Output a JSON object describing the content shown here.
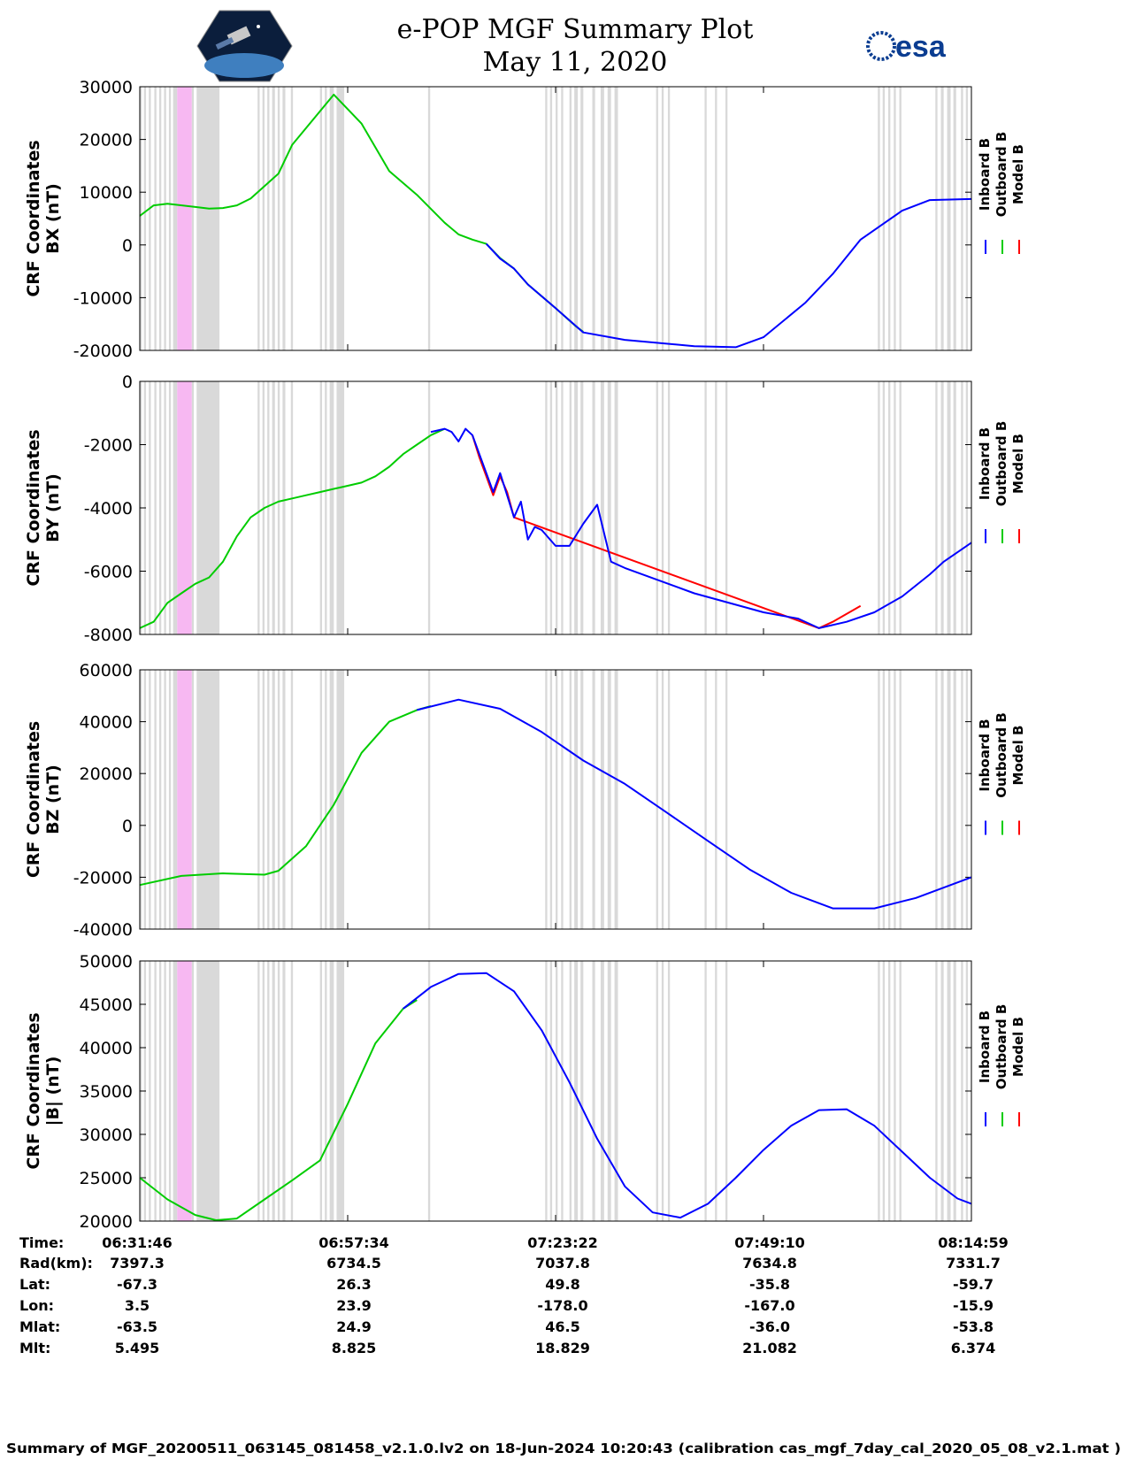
{
  "header": {
    "title_line1": "e-POP MGF Summary Plot",
    "title_line2": "May 11, 2020",
    "left_logo": "cassiope-satellite-logo",
    "right_logo_text": "esa"
  },
  "colors": {
    "inboard": "#0000ff",
    "outboard": "#00cc00",
    "model": "#ff0000",
    "gap_gray": "#d9d9d9",
    "gap_pink": "#f7b8f2"
  },
  "chart_data": [
    {
      "type": "line",
      "ylabel_line1": "CRF Coordinates",
      "ylabel_line2": "BX (nT)",
      "ylim": [
        -20000,
        30000
      ],
      "yticks": [
        -20000,
        -10000,
        0,
        10000,
        20000,
        30000
      ],
      "ytick_labels": [
        "-20000",
        "-10000",
        "0",
        "10000",
        "20000",
        "30000"
      ],
      "legend": [
        "Inboard B",
        "Outboard B",
        "Model B"
      ],
      "series": [
        {
          "name": "Outboard B",
          "color": "outboard",
          "x": [
            0,
            2,
            4,
            8,
            10,
            12,
            14,
            16,
            20,
            22,
            28,
            32,
            36,
            40,
            44,
            46,
            48,
            50,
            52,
            54,
            56,
            60,
            63,
            64
          ],
          "y": [
            5500,
            7500,
            7800,
            7200,
            6900,
            7000,
            7500,
            8800,
            13500,
            19000,
            28500,
            23000,
            14000,
            9500,
            4200,
            2000,
            1000,
            200,
            -2500,
            -4500,
            -7500,
            -12000,
            -15500,
            -16500
          ]
        },
        {
          "name": "Inboard B",
          "color": "inboard",
          "x": [
            50,
            52,
            54,
            56,
            60,
            64,
            70,
            80,
            86,
            90,
            96,
            100,
            104,
            110,
            114,
            120
          ],
          "y": [
            200,
            -2600,
            -4500,
            -7500,
            -12000,
            -16600,
            -18000,
            -19200,
            -19400,
            -17500,
            -11000,
            -5500,
            1000,
            6500,
            8500,
            8700
          ]
        }
      ]
    },
    {
      "type": "line",
      "ylabel_line1": "CRF Coordinates",
      "ylabel_line2": "BY (nT)",
      "ylim": [
        -8000,
        0
      ],
      "yticks": [
        -8000,
        -6000,
        -4000,
        -2000,
        0
      ],
      "ytick_labels": [
        "-8000",
        "-6000",
        "-4000",
        "-2000",
        "0"
      ],
      "legend": [
        "Inboard B",
        "Outboard B",
        "Model B"
      ],
      "series": [
        {
          "name": "Outboard B",
          "color": "outboard",
          "x": [
            0,
            2,
            4,
            6,
            8,
            10,
            12,
            14,
            16,
            18,
            20,
            22,
            24,
            26,
            28,
            30,
            32,
            34,
            36,
            38,
            40,
            42,
            44
          ],
          "y": [
            -7800,
            -7600,
            -7000,
            -6700,
            -6400,
            -6200,
            -5700,
            -4900,
            -4300,
            -4000,
            -3800,
            -3700,
            -3600,
            -3500,
            -3400,
            -3300,
            -3200,
            -3000,
            -2700,
            -2300,
            -2000,
            -1700,
            -1500
          ]
        },
        {
          "name": "Model B",
          "color": "model",
          "x": [
            48,
            49,
            50,
            51,
            52,
            53,
            54,
            98,
            100,
            104
          ],
          "y": [
            -1700,
            -2400,
            -3000,
            -3600,
            -3000,
            -3500,
            -4300,
            -7800,
            -7600,
            -7100
          ]
        },
        {
          "name": "Inboard B",
          "color": "inboard",
          "x": [
            42,
            44,
            45,
            46,
            47,
            48,
            49,
            50,
            51,
            52,
            53,
            54,
            55,
            56,
            57,
            58,
            60,
            62,
            64,
            66,
            68,
            70,
            75,
            80,
            90,
            95,
            98,
            102,
            106,
            110,
            114,
            116,
            120
          ],
          "y": [
            -1600,
            -1500,
            -1600,
            -1900,
            -1500,
            -1700,
            -2300,
            -2900,
            -3500,
            -2900,
            -3600,
            -4300,
            -3800,
            -5000,
            -4600,
            -4700,
            -5200,
            -5200,
            -4500,
            -3900,
            -5700,
            -5900,
            -6300,
            -6700,
            -7300,
            -7500,
            -7800,
            -7600,
            -7300,
            -6800,
            -6100,
            -5700,
            -5100
          ]
        }
      ]
    },
    {
      "type": "line",
      "ylabel_line1": "CRF Coordinates",
      "ylabel_line2": "BZ (nT)",
      "ylim": [
        -40000,
        60000
      ],
      "yticks": [
        -40000,
        -20000,
        0,
        20000,
        40000,
        60000
      ],
      "ytick_labels": [
        "-40000",
        "-20000",
        "0",
        "20000",
        "40000",
        "60000"
      ],
      "legend": [
        "Inboard B",
        "Outboard B",
        "Model B"
      ],
      "series": [
        {
          "name": "Outboard B",
          "color": "outboard",
          "x": [
            0,
            6,
            12,
            18,
            20,
            24,
            28,
            32,
            36,
            40,
            42
          ],
          "y": [
            -23000,
            -19500,
            -18500,
            -19000,
            -17500,
            -8000,
            8000,
            28000,
            40000,
            44500,
            46000
          ]
        },
        {
          "name": "Inboard B",
          "color": "inboard",
          "x": [
            40,
            46,
            52,
            58,
            64,
            70,
            76,
            82,
            88,
            94,
            100,
            106,
            112,
            120
          ],
          "y": [
            44500,
            48500,
            45000,
            36000,
            25000,
            16000,
            5000,
            -6000,
            -17000,
            -26000,
            -32000,
            -32000,
            -28000,
            -20000
          ]
        }
      ]
    },
    {
      "type": "line",
      "ylabel_line1": "CRF Coordinates",
      "ylabel_line2": "|B| (nT)",
      "ylim": [
        20000,
        50000
      ],
      "yticks": [
        20000,
        25000,
        30000,
        35000,
        40000,
        45000,
        50000
      ],
      "ytick_labels": [
        "20000",
        "25000",
        "30000",
        "35000",
        "40000",
        "45000",
        "50000"
      ],
      "legend": [
        "Inboard B",
        "Outboard B",
        "Model B"
      ],
      "series": [
        {
          "name": "Outboard B",
          "color": "outboard",
          "x": [
            0,
            4,
            8,
            11,
            14,
            18,
            22,
            26,
            30,
            34,
            38,
            40
          ],
          "y": [
            25000,
            22500,
            20700,
            20100,
            20300,
            22500,
            24700,
            27000,
            33500,
            40500,
            44500,
            45500
          ]
        },
        {
          "name": "Inboard B",
          "color": "inboard",
          "x": [
            38,
            42,
            46,
            50,
            54,
            58,
            62,
            66,
            70,
            74,
            78,
            82,
            86,
            90,
            94,
            98,
            102,
            106,
            110,
            114,
            118,
            120
          ],
          "y": [
            44500,
            47000,
            48500,
            48600,
            46500,
            42000,
            36000,
            29500,
            24000,
            21000,
            20400,
            22000,
            25000,
            28200,
            31000,
            32800,
            32900,
            31000,
            28000,
            25000,
            22600,
            22000
          ]
        }
      ]
    }
  ],
  "info_rows": [
    {
      "label": "Time:",
      "values": [
        "06:31:46",
        "06:57:34",
        "07:23:22",
        "07:49:10",
        "08:14:59"
      ]
    },
    {
      "label": "Rad(km):",
      "values": [
        "7397.3",
        "6734.5",
        "7037.8",
        "7634.8",
        "7331.7"
      ]
    },
    {
      "label": "Lat:",
      "values": [
        "-67.3",
        "26.3",
        "49.8",
        "-35.8",
        "-59.7"
      ]
    },
    {
      "label": "Lon:",
      "values": [
        "3.5",
        "23.9",
        "-178.0",
        "-167.0",
        "-15.9"
      ]
    },
    {
      "label": "Mlat:",
      "values": [
        "-63.5",
        "24.9",
        "46.5",
        "-36.0",
        "-53.8"
      ]
    },
    {
      "label": "Mlt:",
      "values": [
        "5.495",
        "8.825",
        "18.829",
        "21.082",
        "6.374"
      ]
    }
  ],
  "footer": "Summary of MGF_20200511_063145_081458_v2.1.0.lv2 on 18-Jun-2024 10:20:43 (calibration cas_mgf_7day_cal_2020_05_08_v2.1.mat )"
}
